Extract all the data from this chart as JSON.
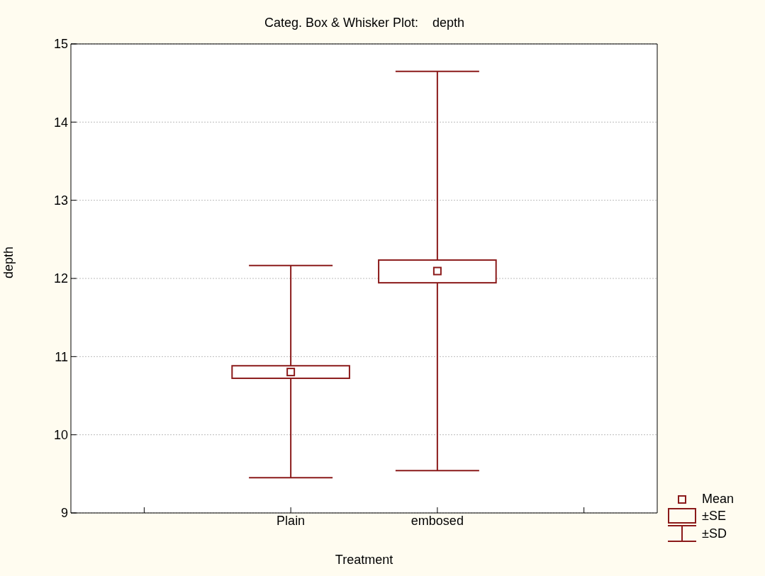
{
  "chart_data": {
    "type": "box",
    "title": "Categ. Box & Whisker Plot:    depth",
    "xlabel": "Treatment",
    "ylabel": "depth",
    "categories": [
      null,
      "Plain",
      "embosed",
      null
    ],
    "boxes": [
      null,
      {
        "low": 9.45,
        "q1": 10.72,
        "q3": 10.88,
        "high": 12.16,
        "mean": 10.8
      },
      {
        "low": 9.54,
        "q1": 11.94,
        "q3": 12.23,
        "high": 14.64,
        "mean": 12.09
      },
      null
    ],
    "color": "#8b1a1a",
    "ylim": [
      9,
      15
    ],
    "yticks": [
      9,
      10,
      11,
      12,
      13,
      14,
      15
    ],
    "grid": "y",
    "annotations": [
      "Mean",
      "±SE",
      "±SD"
    ]
  }
}
